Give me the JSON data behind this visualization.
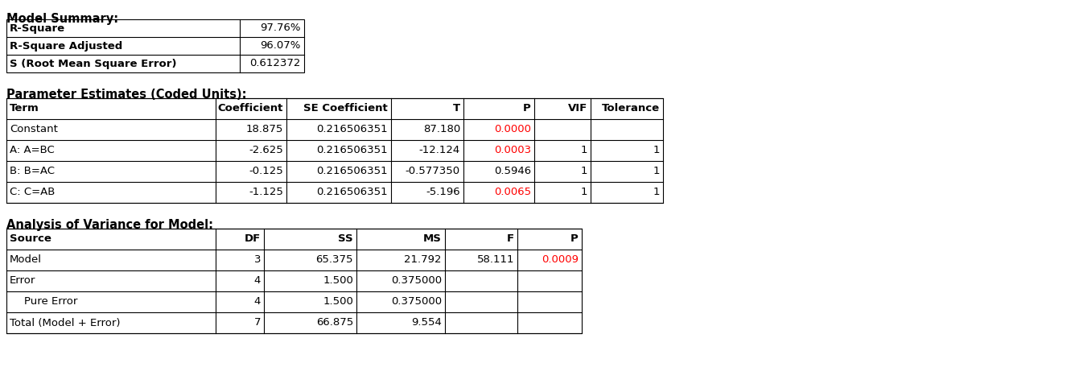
{
  "background_color": "#ffffff",
  "model_summary_title": "Model Summary:",
  "model_summary_rows": [
    [
      "R-Square",
      "97.76%"
    ],
    [
      "R-Square Adjusted",
      "96.07%"
    ],
    [
      "S (Root Mean Square Error)",
      "0.612372"
    ]
  ],
  "param_estimates_title": "Parameter Estimates (Coded Units):",
  "param_headers": [
    "Term",
    "Coefficient",
    "SE Coefficient",
    "T",
    "P",
    "VIF",
    "Tolerance"
  ],
  "param_rows": [
    [
      "Constant",
      "18.875",
      "0.216506351",
      "87.180",
      "0.0000",
      "",
      ""
    ],
    [
      "A: A=BC",
      "-2.625",
      "0.216506351",
      "-12.124",
      "0.0003",
      "1",
      "1"
    ],
    [
      "B: B=AC",
      "-0.125",
      "0.216506351",
      "-0.577350",
      "0.5946",
      "1",
      "1"
    ],
    [
      "C: C=AB",
      "-1.125",
      "0.216506351",
      "-5.196",
      "0.0065",
      "1",
      "1"
    ]
  ],
  "param_red_p": [
    "0.0000",
    "0.0003",
    "0.0065"
  ],
  "anova_title": "Analysis of Variance for Model:",
  "anova_headers": [
    "Source",
    "DF",
    "SS",
    "MS",
    "F",
    "P"
  ],
  "anova_rows": [
    [
      "Model",
      "3",
      "65.375",
      "21.792",
      "58.111",
      "0.0009"
    ],
    [
      "Error",
      "4",
      "1.500",
      "0.375000",
      "",
      ""
    ],
    [
      "Pure Error",
      "4",
      "1.500",
      "0.375000",
      "",
      ""
    ],
    [
      "Total (Model + Error)",
      "7",
      "66.875",
      "9.554",
      "",
      ""
    ]
  ],
  "anova_red_p": [
    "0.0009"
  ],
  "font_size": 9.5,
  "title_font_size": 10.5
}
